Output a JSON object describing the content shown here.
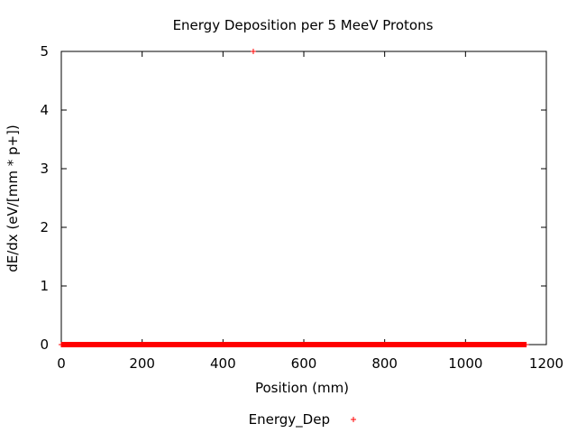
{
  "chart_data": {
    "type": "scatter",
    "title": "Energy Deposition per 5 MeeV Protons",
    "xlabel": "Position (mm)",
    "ylabel": "dE/dx (eV/[mm * p+])",
    "xlim": [
      0,
      1200
    ],
    "ylim": [
      0,
      5
    ],
    "xticks": [
      0,
      200,
      400,
      600,
      800,
      1000,
      1200
    ],
    "yticks": [
      0,
      1,
      2,
      3,
      4,
      5
    ],
    "grid": false,
    "legend_position": "bottom-center",
    "series": [
      {
        "name": "Energy_Dep",
        "marker": "plus",
        "color": "#ff0000",
        "x_range": [
          0,
          1150
        ],
        "baseline_y": 0,
        "outliers": [
          {
            "x": 475,
            "y": 5
          }
        ]
      }
    ]
  }
}
